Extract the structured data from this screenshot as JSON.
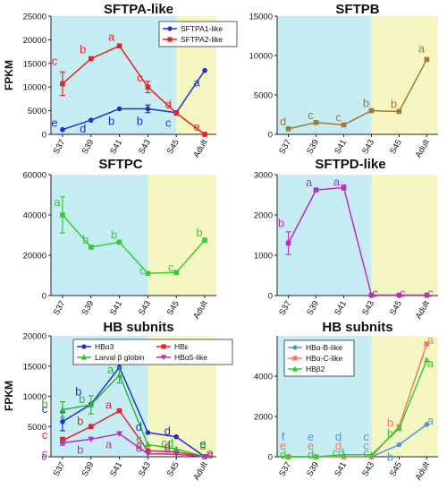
{
  "colors": {
    "early_bg": "#c6ecf4",
    "late_bg": "#f6f6c2",
    "axis": "#222222"
  },
  "chart_data": [
    {
      "type": "line",
      "title": "SFTPA-like",
      "ylabel": "FPKM",
      "ylim": [
        0,
        25000
      ],
      "yticks": [
        "0",
        "5000",
        "10000",
        "15000",
        "20000",
        "25000"
      ],
      "categories": [
        "S37",
        "S39",
        "S41",
        "S43",
        "S45",
        "Adult"
      ],
      "shade_split": "S45",
      "legend": "top-right",
      "series": [
        {
          "name": "SFTPA1-like",
          "color": "#1f2fd6",
          "marker": "circle",
          "values": [
            1000,
            3000,
            5400,
            5400,
            4600,
            13500
          ],
          "errors": [
            0,
            0,
            0,
            800,
            0,
            0
          ],
          "labels": [
            "e",
            "d",
            "b",
            "b",
            "c",
            "a"
          ]
        },
        {
          "name": "SFTPA2-like",
          "color": "#e8221c",
          "marker": "square",
          "values": [
            10700,
            16000,
            18700,
            10000,
            4500,
            0
          ],
          "errors": [
            2500,
            0,
            0,
            1200,
            0,
            0
          ],
          "labels": [
            "c",
            "b",
            "a",
            "c",
            "d",
            "e"
          ]
        }
      ]
    },
    {
      "type": "line",
      "title": "SFTPB",
      "ylabel": "",
      "ylim": [
        0,
        15000
      ],
      "yticks": [
        "0",
        "5000",
        "10000",
        "15000"
      ],
      "categories": [
        "S37",
        "S39",
        "S41",
        "S43",
        "S45",
        "Adult"
      ],
      "shade_split": "S43",
      "series": [
        {
          "name": "",
          "color": "#9c7b3c",
          "marker": "square",
          "values": [
            700,
            1500,
            1200,
            3000,
            2900,
            9500
          ],
          "errors": [
            0,
            0,
            0,
            0,
            0,
            0
          ],
          "labels": [
            "d",
            "c",
            "c",
            "b",
            "b",
            "a"
          ]
        }
      ]
    },
    {
      "type": "line",
      "title": "SFTPC",
      "ylabel": "",
      "ylim": [
        0,
        60000
      ],
      "yticks": [
        "0",
        "20000",
        "40000",
        "60000"
      ],
      "categories": [
        "S37",
        "S39",
        "S41",
        "S43",
        "S45",
        "Adult"
      ],
      "shade_split": "S43",
      "series": [
        {
          "name": "",
          "color": "#2fd12f",
          "marker": "square",
          "values": [
            40000,
            24000,
            26500,
            11000,
            11500,
            27500
          ],
          "errors": [
            9000,
            0,
            0,
            0,
            0,
            0
          ],
          "labels": [
            "a",
            "b",
            "b",
            "c",
            "c",
            "b"
          ]
        }
      ]
    },
    {
      "type": "line",
      "title": "SFTPD-like",
      "ylabel": "",
      "ylim": [
        0,
        3000
      ],
      "yticks": [
        "0",
        "1000",
        "2000",
        "3000"
      ],
      "categories": [
        "S37",
        "S39",
        "S41",
        "S43",
        "S45",
        "Adult"
      ],
      "shade_split": "S43",
      "series": [
        {
          "name": "",
          "color": "#b62fc9",
          "marker": "square",
          "values": [
            1300,
            2620,
            2680,
            10,
            10,
            10
          ],
          "errors": [
            280,
            0,
            60,
            0,
            0,
            0
          ],
          "labels": [
            "b",
            "a",
            "a",
            "c",
            "c",
            "c"
          ]
        }
      ]
    },
    {
      "type": "line",
      "title": "HB subnits",
      "ylabel": "FPKM",
      "ylim": [
        0,
        20000
      ],
      "yticks": [
        "0",
        "5000",
        "10000",
        "15000",
        "20000"
      ],
      "categories": [
        "S37",
        "S39",
        "S41",
        "S43",
        "S45",
        "Adult"
      ],
      "shade_split": "S43",
      "legend": "top",
      "series": [
        {
          "name": "HBα3",
          "color": "#1f2fd6",
          "marker": "circle",
          "values": [
            5800,
            8700,
            14800,
            4000,
            3300,
            0
          ],
          "errors": [
            1500,
            0,
            0,
            0,
            0,
            0
          ],
          "labels": [
            "c",
            "b",
            "a",
            "d",
            "d",
            "e"
          ]
        },
        {
          "name": "HBε",
          "color": "#e8221c",
          "marker": "square",
          "values": [
            2700,
            5000,
            7600,
            1000,
            800,
            0
          ],
          "errors": [
            500,
            0,
            0,
            0,
            0,
            0
          ],
          "labels": [
            "c",
            "b",
            "a",
            "c",
            "d",
            "e"
          ]
        },
        {
          "name": "Larval β globin",
          "color": "#2fb92f",
          "marker": "triangle",
          "values": [
            7800,
            8600,
            13500,
            2000,
            1300,
            0
          ],
          "errors": [
            1300,
            1500,
            1300,
            0,
            0,
            0
          ],
          "labels": [
            "b",
            "b",
            "a",
            "c",
            "cd",
            "d"
          ]
        },
        {
          "name": "HBα5-like",
          "color": "#b62fc9",
          "marker": "triangle-down",
          "values": [
            2300,
            2900,
            3800,
            500,
            400,
            0
          ],
          "errors": [
            400,
            0,
            0,
            0,
            0,
            0
          ],
          "labels": [
            "c",
            "b",
            "a",
            "d",
            "d",
            "e"
          ]
        }
      ]
    },
    {
      "type": "line",
      "title": "HB subnits",
      "ylabel": "",
      "ylim": [
        0,
        6000
      ],
      "yticks": [
        "0",
        "2000",
        "4000"
      ],
      "categories": [
        "S37",
        "S39",
        "S41",
        "S43",
        "S45",
        "Adult"
      ],
      "shade_split": "S43",
      "legend": "top-left",
      "series": [
        {
          "name": "HBα-B-like",
          "color": "#4a9ad8",
          "marker": "circle",
          "values": [
            0,
            0,
            0,
            0,
            600,
            1600
          ],
          "errors": [
            0,
            0,
            0,
            0,
            0,
            0
          ],
          "labels": [
            "f",
            "e",
            "d",
            "c",
            "b",
            "a"
          ]
        },
        {
          "name": "HBα-C-like",
          "color": "#f07a6a",
          "marker": "square",
          "values": [
            0,
            0,
            0,
            0,
            1500,
            5600
          ],
          "errors": [
            0,
            0,
            0,
            0,
            0,
            0
          ],
          "labels": [
            "e",
            "e",
            "d",
            "c",
            "b",
            "a"
          ]
        },
        {
          "name": "HBβ2",
          "color": "#2fd12f",
          "marker": "triangle",
          "values": [
            0,
            0,
            100,
            100,
            1400,
            4800
          ],
          "errors": [
            0,
            0,
            0,
            0,
            0,
            0
          ],
          "labels": [
            "d",
            "d",
            "cd",
            "c",
            "b",
            "a"
          ]
        }
      ]
    }
  ]
}
